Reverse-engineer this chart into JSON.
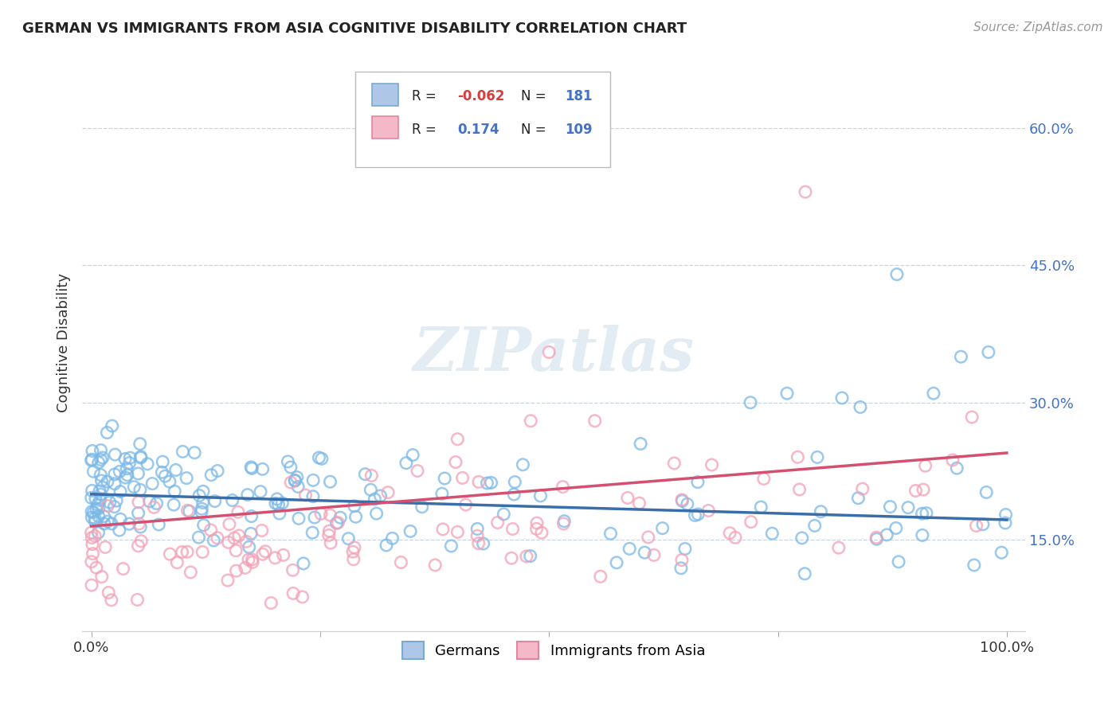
{
  "title": "GERMAN VS IMMIGRANTS FROM ASIA COGNITIVE DISABILITY CORRELATION CHART",
  "source": "Source: ZipAtlas.com",
  "ylabel": "Cognitive Disability",
  "watermark": "ZIPatlas",
  "german_color": "#7ab8e8",
  "asian_color": "#f4a0b5",
  "german_line_color": "#3a6ea8",
  "asian_line_color": "#d45070",
  "background_color": "#ffffff",
  "grid_color": "#c8d4e0",
  "ytick_color": "#4472c4",
  "r_neg_color": "#d44040",
  "r_pos_color": "#4472c4",
  "n_color": "#4472c4",
  "legend_box_color": "#cccccc",
  "german_R": -0.062,
  "german_N": 181,
  "asian_R": 0.174,
  "asian_N": 109,
  "xlim": [
    -0.01,
    1.02
  ],
  "ylim": [
    0.05,
    0.68
  ],
  "yticks": [
    0.15,
    0.3,
    0.45,
    0.6
  ],
  "ytick_labels": [
    "15.0%",
    "30.0%",
    "45.0%",
    "60.0%"
  ],
  "legend_r1": "R = -0.062",
  "legend_n1": "N =  181",
  "legend_r2": "R =   0.174",
  "legend_n2": "N = 109"
}
